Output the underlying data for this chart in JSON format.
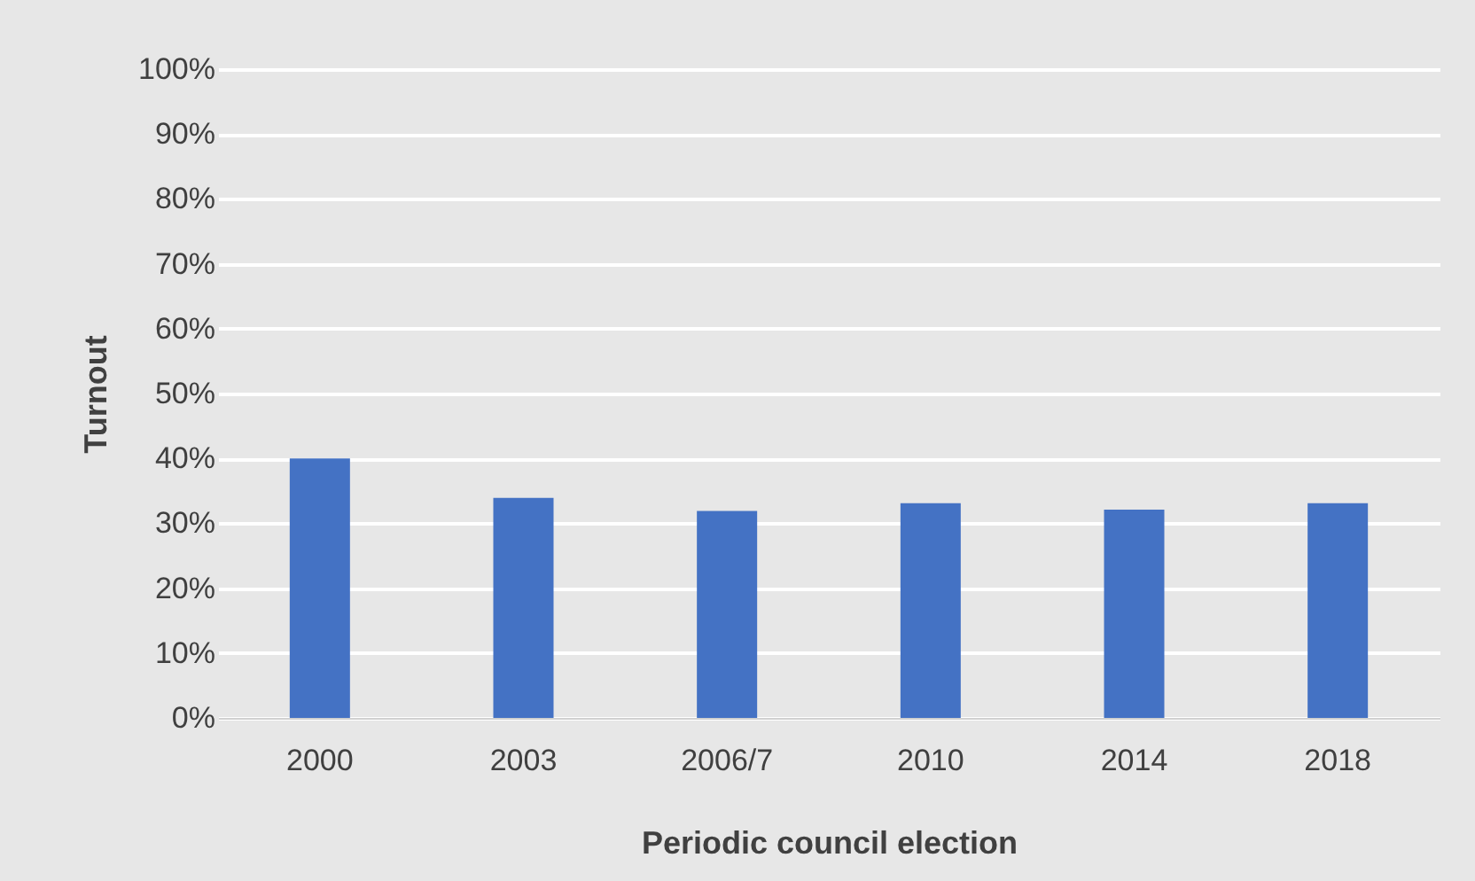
{
  "chart_data": {
    "type": "bar",
    "xlabel": "Periodic council election",
    "ylabel": "Turnout",
    "categories": [
      "2000",
      "2003",
      "2006/7",
      "2010",
      "2014",
      "2018"
    ],
    "values": [
      40,
      33.9,
      31.9,
      33.1,
      32.1,
      33.1
    ],
    "color": "#4472c4",
    "ylim": [
      0,
      100
    ],
    "yticks": [
      {
        "value": 0,
        "label": "0%"
      },
      {
        "value": 10,
        "label": "10%"
      },
      {
        "value": 20,
        "label": "20%"
      },
      {
        "value": 30,
        "label": "30%"
      },
      {
        "value": 40,
        "label": "40%"
      },
      {
        "value": 50,
        "label": "50%"
      },
      {
        "value": 60,
        "label": "60%"
      },
      {
        "value": 70,
        "label": "70%"
      },
      {
        "value": 80,
        "label": "80%"
      },
      {
        "value": 90,
        "label": "90%"
      },
      {
        "value": 100,
        "label": "100%"
      }
    ],
    "grid": "y"
  }
}
